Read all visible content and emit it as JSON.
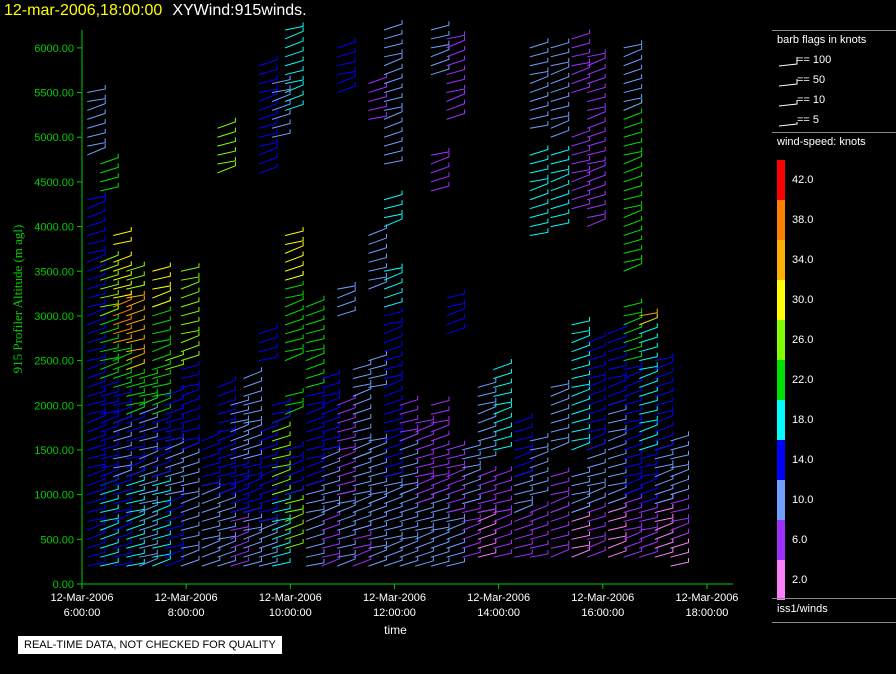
{
  "header": {
    "timestamp": "12-mar-2006,18:00:00",
    "product": "XYWind:915winds."
  },
  "warning": "REAL-TIME DATA, NOT CHECKED FOR QUALITY",
  "legend": {
    "barb_title": "barb flags in knots",
    "barb_items": [
      "== 100",
      "== 50",
      "== 10",
      "== 5"
    ],
    "speed_title": "wind-speed: knots",
    "speed_bins": [
      {
        "label": "42.0",
        "color": "#ff0000"
      },
      {
        "label": "38.0",
        "color": "#ff7f00"
      },
      {
        "label": "34.0",
        "color": "#ffb000"
      },
      {
        "label": "30.0",
        "color": "#ffff00"
      },
      {
        "label": "26.0",
        "color": "#80ff00"
      },
      {
        "label": "22.0",
        "color": "#00e000"
      },
      {
        "label": "18.0",
        "color": "#00ffff"
      },
      {
        "label": "14.0",
        "color": "#0000ff"
      },
      {
        "label": "10.0",
        "color": "#6f9fff"
      },
      {
        "label": "6.0",
        "color": "#9f2fff"
      },
      {
        "label": "2.0",
        "color": "#ff80ff"
      }
    ],
    "source": "iss1/winds"
  },
  "chart_data": {
    "type": "scatter",
    "subtype": "wind-barb time-height",
    "ylabel": "915 Profiler Altitude (m agl)",
    "xlabel": "time",
    "ylim": [
      0,
      6200
    ],
    "yticks": [
      "0.00",
      "500.00",
      "1000.00",
      "1500.00",
      "2000.00",
      "2500.00",
      "3000.00",
      "3500.00",
      "4000.00",
      "4500.00",
      "5000.00",
      "5500.00",
      "6000.00"
    ],
    "xlim_hours": [
      6,
      18.5
    ],
    "xticks": [
      {
        "date": "12-Mar-2006",
        "time": "6:00:00"
      },
      {
        "date": "12-Mar-2006",
        "time": "8:00:00"
      },
      {
        "date": "12-Mar-2006",
        "time": "10:00:00"
      },
      {
        "date": "12-Mar-2006",
        "time": "12:00:00"
      },
      {
        "date": "12-Mar-2006",
        "time": "14:00:00"
      },
      {
        "date": "12-Mar-2006",
        "time": "16:00:00"
      },
      {
        "date": "12-Mar-2006",
        "time": "18:00:00"
      }
    ],
    "axis_color": "#00cc00",
    "profiles": [
      {
        "t": 6.1,
        "segments": [
          [
            200,
            1800,
            14
          ],
          [
            1800,
            4300,
            14
          ],
          [
            4800,
            5500,
            10
          ]
        ]
      },
      {
        "t": 6.35,
        "segments": [
          [
            200,
            1100,
            18
          ],
          [
            1100,
            2300,
            14
          ],
          [
            2300,
            3000,
            22
          ],
          [
            3000,
            3600,
            26
          ],
          [
            4400,
            4700,
            22
          ]
        ]
      },
      {
        "t": 6.6,
        "segments": [
          [
            200,
            1200,
            14
          ],
          [
            1200,
            1800,
            10
          ],
          [
            1800,
            2200,
            14
          ],
          [
            2200,
            2700,
            22
          ],
          [
            2700,
            3200,
            38
          ],
          [
            3200,
            3600,
            30
          ],
          [
            3800,
            3900,
            30
          ]
        ]
      },
      {
        "t": 6.85,
        "segments": [
          [
            200,
            1200,
            18
          ],
          [
            1200,
            1900,
            14
          ],
          [
            1900,
            2400,
            22
          ],
          [
            2400,
            3300,
            34
          ],
          [
            3300,
            3500,
            26
          ]
        ]
      },
      {
        "t": 7.1,
        "segments": [
          [
            200,
            1000,
            10
          ],
          [
            1000,
            2000,
            10
          ],
          [
            2000,
            2300,
            22
          ]
        ]
      },
      {
        "t": 7.35,
        "segments": [
          [
            200,
            1200,
            18
          ],
          [
            1200,
            1900,
            14
          ],
          [
            1900,
            3100,
            22
          ],
          [
            3100,
            3500,
            30
          ]
        ]
      },
      {
        "t": 7.6,
        "segments": [
          [
            200,
            1000,
            14
          ],
          [
            1000,
            1600,
            10
          ],
          [
            1600,
            2100,
            14
          ],
          [
            2400,
            2500,
            26
          ]
        ]
      },
      {
        "t": 7.9,
        "segments": [
          [
            200,
            1500,
            10
          ],
          [
            1500,
            2500,
            14
          ],
          [
            2500,
            3500,
            26
          ]
        ]
      },
      {
        "t": 8.3,
        "segments": [
          [
            200,
            1100,
            10
          ],
          [
            1100,
            1600,
            14
          ]
        ]
      },
      {
        "t": 8.6,
        "segments": [
          [
            200,
            1000,
            10
          ],
          [
            1000,
            2200,
            14
          ],
          [
            4600,
            5100,
            26
          ]
        ]
      },
      {
        "t": 8.85,
        "segments": [
          [
            200,
            800,
            6
          ],
          [
            800,
            1400,
            14
          ],
          [
            1400,
            2000,
            10
          ]
        ]
      },
      {
        "t": 9.1,
        "segments": [
          [
            200,
            800,
            10
          ],
          [
            800,
            1400,
            14
          ],
          [
            1400,
            2300,
            10
          ]
        ]
      },
      {
        "t": 9.4,
        "segments": [
          [
            200,
            700,
            10
          ],
          [
            700,
            1700,
            14
          ],
          [
            2500,
            2800,
            14
          ],
          [
            4600,
            5800,
            14
          ]
        ]
      },
      {
        "t": 9.65,
        "segments": [
          [
            200,
            1000,
            18
          ],
          [
            1000,
            1800,
            26
          ],
          [
            1800,
            2000,
            14
          ],
          [
            5000,
            5600,
            10
          ]
        ]
      },
      {
        "t": 9.9,
        "segments": [
          [
            400,
            1000,
            26
          ],
          [
            1000,
            1500,
            14
          ],
          [
            1900,
            2100,
            22
          ],
          [
            2500,
            3400,
            22
          ],
          [
            3400,
            3900,
            30
          ],
          [
            5300,
            6200,
            18
          ]
        ]
      },
      {
        "t": 10.3,
        "segments": [
          [
            200,
            1100,
            10
          ],
          [
            1100,
            2200,
            14
          ],
          [
            2200,
            3100,
            22
          ]
        ]
      },
      {
        "t": 10.6,
        "segments": [
          [
            200,
            800,
            6
          ],
          [
            800,
            1500,
            10
          ],
          [
            1500,
            2300,
            14
          ]
        ]
      },
      {
        "t": 10.9,
        "segments": [
          [
            200,
            1000,
            10
          ],
          [
            1000,
            2000,
            6
          ],
          [
            3000,
            3300,
            10
          ],
          [
            5500,
            6000,
            14
          ]
        ]
      },
      {
        "t": 11.2,
        "segments": [
          [
            200,
            600,
            6
          ],
          [
            600,
            1400,
            10
          ],
          [
            1400,
            2400,
            10
          ]
        ]
      },
      {
        "t": 11.5,
        "segments": [
          [
            200,
            900,
            10
          ],
          [
            900,
            1600,
            10
          ],
          [
            2200,
            2500,
            10
          ],
          [
            3300,
            3900,
            10
          ],
          [
            5200,
            5600,
            6
          ]
        ]
      },
      {
        "t": 11.8,
        "segments": [
          [
            200,
            1200,
            10
          ],
          [
            1200,
            2300,
            14
          ],
          [
            2300,
            3100,
            14
          ],
          [
            3100,
            3500,
            18
          ],
          [
            4000,
            4300,
            18
          ],
          [
            4700,
            6200,
            10
          ]
        ]
      },
      {
        "t": 12.1,
        "segments": [
          [
            200,
            1000,
            10
          ],
          [
            1000,
            1600,
            10
          ],
          [
            1600,
            2000,
            6
          ]
        ]
      },
      {
        "t": 12.4,
        "segments": [
          [
            200,
            900,
            10
          ],
          [
            900,
            1800,
            6
          ]
        ]
      },
      {
        "t": 12.7,
        "segments": [
          [
            200,
            1000,
            10
          ],
          [
            1000,
            2000,
            6
          ],
          [
            4400,
            4800,
            6
          ],
          [
            5700,
            6200,
            10
          ]
        ]
      },
      {
        "t": 13.0,
        "segments": [
          [
            200,
            800,
            10
          ],
          [
            800,
            1500,
            6
          ],
          [
            2800,
            3200,
            14
          ],
          [
            5200,
            6100,
            6
          ]
        ]
      },
      {
        "t": 13.3,
        "segments": [
          [
            300,
            900,
            6
          ],
          [
            900,
            1500,
            10
          ]
        ]
      },
      {
        "t": 13.6,
        "segments": [
          [
            300,
            800,
            2
          ],
          [
            800,
            1200,
            6
          ],
          [
            1400,
            2200,
            10
          ]
        ]
      },
      {
        "t": 13.9,
        "segments": [
          [
            300,
            800,
            6
          ],
          [
            800,
            1200,
            6
          ],
          [
            1500,
            2400,
            18
          ]
        ]
      },
      {
        "t": 14.3,
        "segments": [
          [
            300,
            800,
            6
          ],
          [
            800,
            1200,
            10
          ],
          [
            1200,
            1800,
            14
          ]
        ]
      },
      {
        "t": 14.6,
        "segments": [
          [
            300,
            800,
            6
          ],
          [
            1000,
            1600,
            10
          ],
          [
            3900,
            4800,
            18
          ],
          [
            5100,
            6000,
            10
          ]
        ]
      },
      {
        "t": 15.0,
        "segments": [
          [
            300,
            800,
            6
          ],
          [
            800,
            1200,
            6
          ],
          [
            1500,
            2200,
            10
          ],
          [
            4000,
            4800,
            18
          ],
          [
            5000,
            6000,
            10
          ]
        ]
      },
      {
        "t": 15.4,
        "segments": [
          [
            300,
            800,
            2
          ],
          [
            800,
            1200,
            10
          ],
          [
            1500,
            2900,
            18
          ],
          [
            4200,
            5000,
            6
          ],
          [
            5500,
            6100,
            6
          ]
        ]
      },
      {
        "t": 15.7,
        "segments": [
          [
            300,
            900,
            6
          ],
          [
            900,
            1500,
            10
          ],
          [
            1500,
            2700,
            14
          ],
          [
            4000,
            5900,
            6
          ]
        ]
      },
      {
        "t": 16.1,
        "segments": [
          [
            300,
            900,
            2
          ],
          [
            900,
            2000,
            10
          ],
          [
            2000,
            2800,
            14
          ]
        ]
      },
      {
        "t": 16.4,
        "segments": [
          [
            300,
            1000,
            6
          ],
          [
            1000,
            2500,
            14
          ],
          [
            2500,
            3100,
            22
          ],
          [
            3500,
            5300,
            22
          ],
          [
            5300,
            6000,
            10
          ]
        ]
      },
      {
        "t": 16.7,
        "segments": [
          [
            300,
            900,
            6
          ],
          [
            900,
            1500,
            14
          ],
          [
            1500,
            2900,
            18
          ],
          [
            2900,
            3000,
            34
          ]
        ]
      },
      {
        "t": 17.0,
        "segments": [
          [
            300,
            900,
            2
          ],
          [
            900,
            1500,
            10
          ],
          [
            1500,
            2500,
            14
          ]
        ]
      },
      {
        "t": 17.3,
        "segments": [
          [
            200,
            500,
            2
          ],
          [
            500,
            1000,
            6
          ],
          [
            1000,
            1600,
            10
          ]
        ]
      }
    ]
  }
}
